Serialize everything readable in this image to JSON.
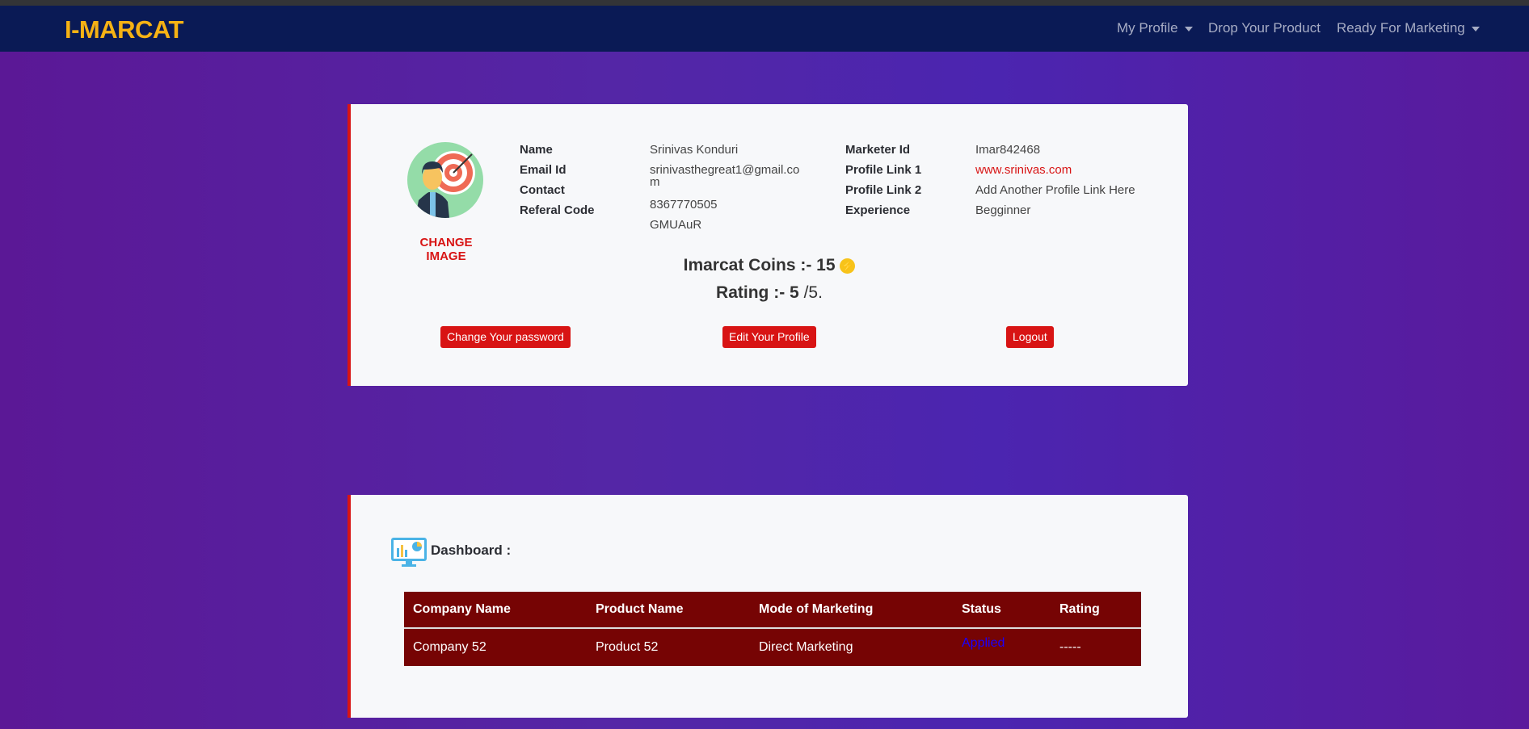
{
  "navbar": {
    "logo": "I-MARCAT",
    "items": [
      {
        "label": "My Profile"
      },
      {
        "label": "Drop Your Product"
      },
      {
        "label": "Ready For Marketing"
      }
    ]
  },
  "profile": {
    "change_image": "CHANGE IMAGE",
    "fields_left": [
      {
        "label": "Name",
        "value": "Srinivas Konduri"
      },
      {
        "label": "Email Id",
        "value": "srinivasthegreat1@gmail.co",
        "value_wrap": "m"
      },
      {
        "label": "Contact",
        "value": "8367770505"
      },
      {
        "label": "Referal Code",
        "value": "GMUAuR"
      }
    ],
    "fields_right": [
      {
        "label": "Marketer Id",
        "value": "Imar842468"
      },
      {
        "label": "Profile Link 1",
        "value": "www.srinivas.com"
      },
      {
        "label": "Profile Link 2",
        "value": "Add Another Profile Link Here"
      },
      {
        "label": "Experience",
        "value": "Begginner"
      }
    ],
    "coins_label": "Imarcat Coins :-",
    "coins": "15",
    "rating_label": "Rating :-",
    "rating": "5",
    "rating_suffix": "/5.",
    "buttons": {
      "change_password": "Change Your password",
      "edit_profile": "Edit Your Profile",
      "logout": "Logout"
    }
  },
  "dashboard": {
    "title": "Dashboard :",
    "columns": [
      "Company Name",
      "Product Name",
      "Mode of Marketing",
      "Status",
      "Rating"
    ],
    "rows": [
      [
        "Company 52",
        "Product 52",
        "Direct Marketing",
        "Applied",
        "-----"
      ]
    ]
  },
  "colors": {
    "accent": "#d81414",
    "navbar": "#0a1a55",
    "logo": "#f6b214",
    "table": "#760404",
    "status": "#1a00ff"
  }
}
